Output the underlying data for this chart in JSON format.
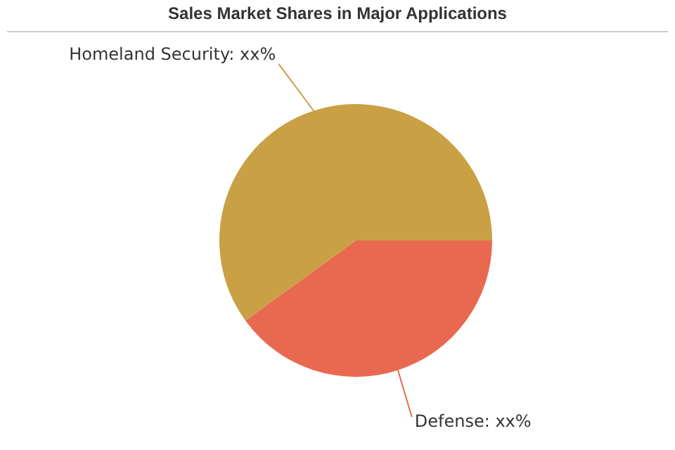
{
  "chart_data": {
    "type": "pie",
    "title": "Sales Market Shares in Major Applications",
    "categories": [
      "Defense",
      "Homeland Security"
    ],
    "values": [
      40,
      60
    ],
    "colors": [
      "#e8694f",
      "#c9a044"
    ],
    "value_labels": [
      "xx%",
      "xx%"
    ],
    "legend": false
  }
}
